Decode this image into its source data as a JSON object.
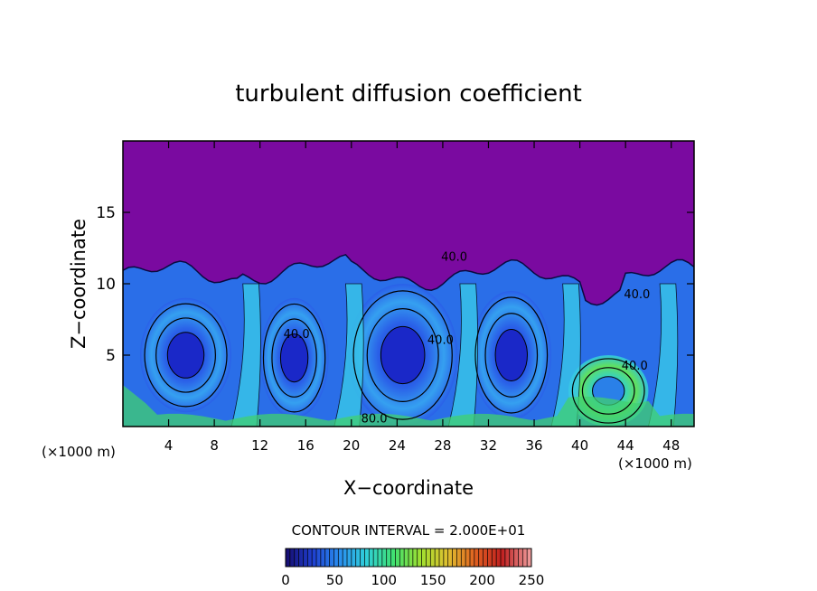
{
  "chart_data": {
    "type": "heatmap",
    "title": "turbulent diffusion coefficient",
    "xlabel": "X−coordinate",
    "ylabel": "Z−coordinate",
    "x_unit_left": "(×1000 m)",
    "x_unit_right": "(×1000 m)",
    "xlim": [
      0,
      50
    ],
    "ylim": [
      0,
      20
    ],
    "x_ticks": [
      "4",
      "8",
      "12",
      "16",
      "20",
      "24",
      "28",
      "32",
      "36",
      "40",
      "44",
      "48"
    ],
    "y_ticks": [
      "5",
      "10",
      "15"
    ],
    "contour_interval_text": "CONTOUR INTERVAL = 2.000E+01",
    "contour_labels": [
      {
        "text": "40.0",
        "x": 15.2,
        "z": 6.2
      },
      {
        "text": "40.0",
        "x": 27.8,
        "z": 5.8
      },
      {
        "text": "80.0",
        "x": 22.0,
        "z": 0.3
      },
      {
        "text": "40.0",
        "x": 29.0,
        "z": 11.6
      },
      {
        "text": "40.0",
        "x": 44.8,
        "z": 4.0
      },
      {
        "text": "40.0",
        "x": 45.0,
        "z": 9.0
      }
    ],
    "colorbar": {
      "min": 0,
      "max": 250,
      "tick_labels": [
        "0",
        "50",
        "100",
        "150",
        "200",
        "250"
      ],
      "colors": [
        "#160c6e",
        "#1f3fd0",
        "#2a8ff0",
        "#30d0d8",
        "#40e070",
        "#a0e030",
        "#e0c030",
        "#e06020",
        "#c02020",
        "#f0a0a0"
      ]
    },
    "background_color": "#7a0aa0",
    "eddies": [
      {
        "x": 5.5,
        "z": 5.0,
        "rx": 4.0,
        "rz": 4.0,
        "level": 20
      },
      {
        "x": 15.0,
        "z": 4.8,
        "rx": 3.0,
        "rz": 4.2,
        "level": 25
      },
      {
        "x": 24.5,
        "z": 5.0,
        "rx": 4.8,
        "rz": 5.0,
        "level": 20
      },
      {
        "x": 34.0,
        "z": 5.0,
        "rx": 3.5,
        "rz": 4.5,
        "level": 20
      },
      {
        "x": 42.5,
        "z": 2.5,
        "rx": 3.5,
        "rz": 2.5,
        "level": 110
      }
    ]
  }
}
